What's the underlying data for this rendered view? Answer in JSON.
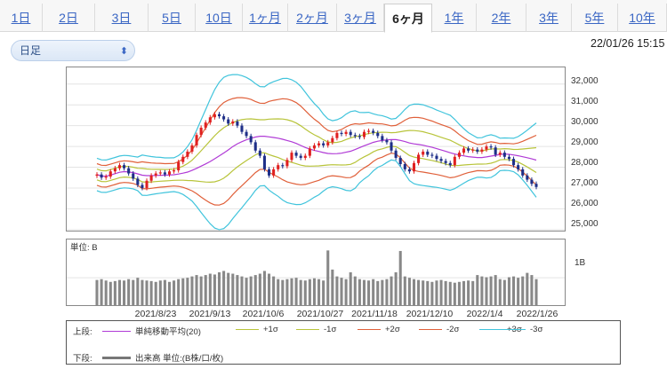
{
  "tabs": [
    {
      "label": "1日",
      "active": false
    },
    {
      "label": "2日",
      "active": false
    },
    {
      "label": "3日",
      "active": false
    },
    {
      "label": "5日",
      "active": false
    },
    {
      "label": "10日",
      "active": false
    },
    {
      "label": "1ヶ月",
      "active": false
    },
    {
      "label": "2ヶ月",
      "active": false
    },
    {
      "label": "3ヶ月",
      "active": false
    },
    {
      "label": "6ヶ月",
      "active": true
    },
    {
      "label": "1年",
      "active": false
    },
    {
      "label": "2年",
      "active": false
    },
    {
      "label": "3年",
      "active": false
    },
    {
      "label": "5年",
      "active": false
    },
    {
      "label": "10年",
      "active": false
    }
  ],
  "period_select": {
    "value": "日足"
  },
  "timestamp": "22/01/26 15:15",
  "colors": {
    "tab_link": "#3a66c4",
    "candle_up": "#e02020",
    "candle_down": "#1e2f88",
    "sma": "#b03ad6",
    "band_1": "#b8c43a",
    "band_2": "#e0603a",
    "band_3": "#40c4dc",
    "volume": "#888888"
  },
  "chart_data": {
    "type": "candlestick",
    "price_axis": {
      "ticks": [
        "32,000",
        "31,000",
        "30,000",
        "29,000",
        "28,000",
        "27,000",
        "26,000",
        "25,000"
      ],
      "ylim": [
        24950,
        32800
      ]
    },
    "volume_axis": {
      "unit_label": "単位: B",
      "ticks": [
        "1B"
      ],
      "ylim": [
        0,
        2.4
      ]
    },
    "x_labels": [
      "2021/8/23",
      "2021/9/13",
      "2021/10/6",
      "2021/10/27",
      "2021/11/18",
      "2021/12/10",
      "2022/1/4",
      "2022/1/26"
    ],
    "closes": [
      27650,
      27500,
      27550,
      27800,
      27950,
      28100,
      27950,
      27700,
      27450,
      27150,
      27000,
      27350,
      27600,
      27700,
      27750,
      27650,
      27800,
      27850,
      28250,
      28500,
      28750,
      29050,
      29550,
      29900,
      30150,
      30400,
      30550,
      30450,
      30300,
      30100,
      30200,
      30000,
      29700,
      29500,
      29200,
      28800,
      28550,
      27900,
      27600,
      27900,
      28100,
      28050,
      28350,
      28700,
      28550,
      28450,
      28550,
      28900,
      29050,
      29150,
      29050,
      29200,
      29400,
      29650,
      29600,
      29700,
      29550,
      29500,
      29450,
      29700,
      29750,
      29650,
      29500,
      29300,
      29200,
      28800,
      28450,
      28150,
      27900,
      27800,
      28200,
      28600,
      28750,
      28600,
      28550,
      28400,
      28300,
      28200,
      28100,
      28500,
      28700,
      28900,
      28800,
      28850,
      28750,
      28850,
      29000,
      28950,
      28600,
      28700,
      28500,
      28400,
      28100,
      27900,
      27600,
      27400,
      27200,
      27050
    ],
    "volumes": [
      0.92,
      0.95,
      0.9,
      0.85,
      0.88,
      0.92,
      0.9,
      0.95,
      0.92,
      1.0,
      0.92,
      0.9,
      0.88,
      0.85,
      0.9,
      0.92,
      0.85,
      0.9,
      0.95,
      0.98,
      1.0,
      1.05,
      1.1,
      1.05,
      1.1,
      1.15,
      1.12,
      1.2,
      1.25,
      1.18,
      1.15,
      1.1,
      1.05,
      1.0,
      1.05,
      1.1,
      1.15,
      1.25,
      1.15,
      1.05,
      0.95,
      0.92,
      0.95,
      0.98,
      1.0,
      0.92,
      0.9,
      0.95,
      0.98,
      0.95,
      0.9,
      2.0,
      1.3,
      1.05,
      1.0,
      0.95,
      1.2,
      1.05,
      0.95,
      0.92,
      0.9,
      0.95,
      0.88,
      0.92,
      0.95,
      1.05,
      1.2,
      1.98,
      1.05,
      1.0,
      0.95,
      0.92,
      0.9,
      0.88,
      0.85,
      0.9,
      0.92,
      0.88,
      0.85,
      0.82,
      0.85,
      0.88,
      0.9,
      0.88,
      1.1,
      1.05,
      1.02,
      1.05,
      1.1,
      0.95,
      0.92,
      1.02,
      1.05,
      1.0,
      1.05,
      1.18,
      1.1,
      0.95
    ]
  },
  "legend": {
    "upper_label": "上段:",
    "lower_label": "下段:",
    "items": [
      {
        "label": "単純移動平均(20)",
        "color": "#b03ad6"
      },
      {
        "label": "+1σ",
        "color": "#b8c43a"
      },
      {
        "label": "-1σ",
        "color": "#b8c43a"
      },
      {
        "label": "+2σ",
        "color": "#e0603a"
      },
      {
        "label": "-2σ",
        "color": "#e0603a"
      },
      {
        "label": "+3σ",
        "color": "#40c4dc"
      },
      {
        "label": "-3σ",
        "color": "#40c4dc"
      }
    ],
    "volume_label": "出来高 単位:(B株/口/枚)",
    "volume_color": "#777777"
  }
}
